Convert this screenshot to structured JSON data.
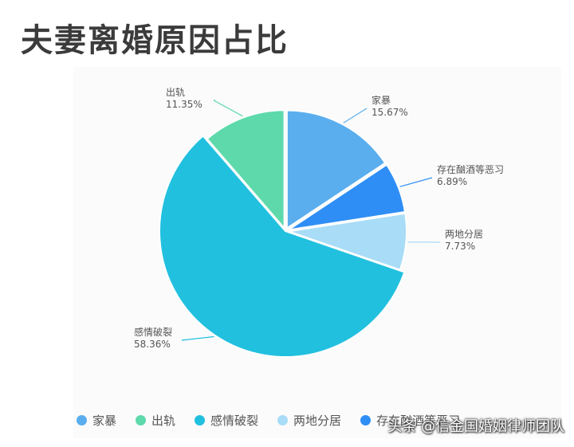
{
  "chart_data": {
    "type": "pie",
    "title": "夫妻离婚原因占比",
    "slices": [
      {
        "name": "家暴",
        "label": "15.67%",
        "value": 15.67,
        "color": "#5aaeee"
      },
      {
        "name": "存在酗酒等恶习",
        "label": "6.89%",
        "value": 6.89,
        "color": "#2f8ef5"
      },
      {
        "name": "两地分居",
        "label": "7.73%",
        "value": 7.73,
        "color": "#a8dcf7"
      },
      {
        "name": "感情破裂",
        "label": "58.36%",
        "value": 58.36,
        "color": "#22c0df"
      },
      {
        "name": "出轨",
        "label": "11.35%",
        "value": 11.35,
        "color": "#5ed9ac"
      }
    ],
    "legend": {
      "placement": "bottom",
      "items": [
        {
          "name": "家暴",
          "color": "#5aaeee"
        },
        {
          "name": "出轨",
          "color": "#5ed9ac"
        },
        {
          "name": "感情破裂",
          "color": "#22c0df"
        },
        {
          "name": "两地分居",
          "color": "#a8dcf7"
        },
        {
          "name": "存在酗酒等恶习",
          "color": "#2f8ef5"
        }
      ]
    }
  },
  "watermark": "头条 @信金国婚姻律师团队"
}
